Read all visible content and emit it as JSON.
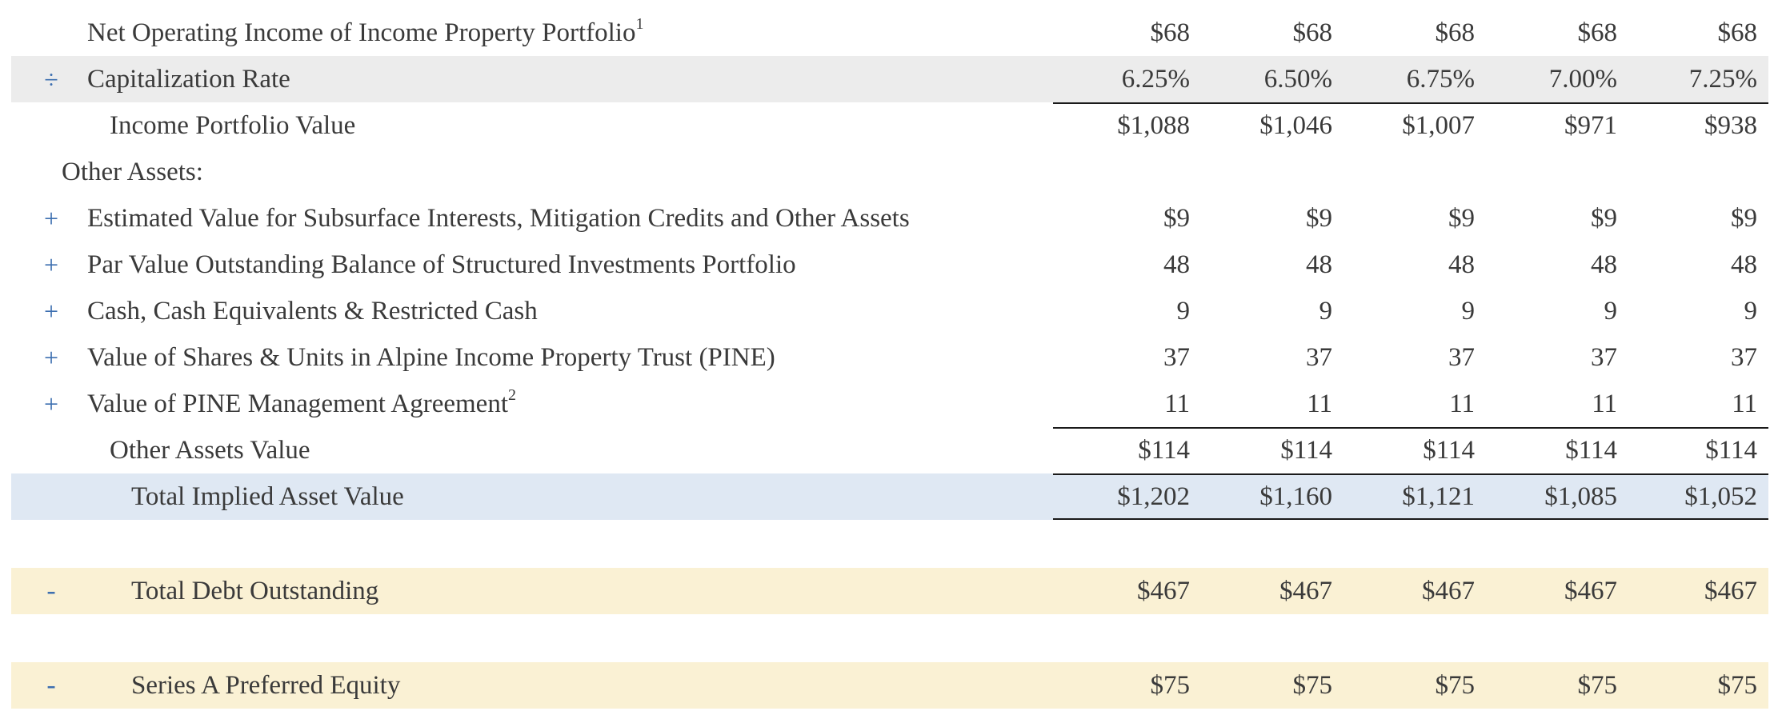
{
  "rows": [
    {
      "op": "",
      "label": "Net Operating Income of Income Property Portfolio",
      "sup": "1",
      "values": [
        "$68",
        "$68",
        "$68",
        "$68",
        "$68"
      ]
    },
    {
      "op": "÷",
      "label": "Capitalization Rate",
      "sup": "",
      "values": [
        "6.25%",
        "6.50%",
        "6.75%",
        "7.00%",
        "7.25%"
      ]
    },
    {
      "op": "",
      "label": "Income Portfolio Value",
      "sup": "",
      "values": [
        "$1,088",
        "$1,046",
        "$1,007",
        "$971",
        "$938"
      ]
    },
    {
      "op": "",
      "label": "Other Assets:",
      "sup": "",
      "values": [
        "",
        "",
        "",
        "",
        ""
      ]
    },
    {
      "op": "+",
      "label": "Estimated Value for Subsurface Interests, Mitigation Credits and Other Assets",
      "sup": "",
      "values": [
        "$9",
        "$9",
        "$9",
        "$9",
        "$9"
      ]
    },
    {
      "op": "+",
      "label": "Par Value Outstanding Balance of Structured Investments Portfolio",
      "sup": "",
      "values": [
        "48",
        "48",
        "48",
        "48",
        "48"
      ]
    },
    {
      "op": "+",
      "label": "Cash, Cash Equivalents & Restricted Cash",
      "sup": "",
      "values": [
        "9",
        "9",
        "9",
        "9",
        "9"
      ]
    },
    {
      "op": "+",
      "label": "Value of Shares & Units in Alpine Income Property Trust (PINE)",
      "sup": "",
      "values": [
        "37",
        "37",
        "37",
        "37",
        "37"
      ]
    },
    {
      "op": "+",
      "label": "Value of PINE Management Agreement",
      "sup": "2",
      "values": [
        "11",
        "11",
        "11",
        "11",
        "11"
      ]
    },
    {
      "op": "",
      "label": "Other Assets Value",
      "sup": "",
      "values": [
        "$114",
        "$114",
        "$114",
        "$114",
        "$114"
      ]
    },
    {
      "op": "",
      "label": "Total Implied Asset Value",
      "sup": "",
      "values": [
        "$1,202",
        "$1,160",
        "$1,121",
        "$1,085",
        "$1,052"
      ]
    },
    {
      "op": "-",
      "label": "Total Debt Outstanding",
      "sup": "",
      "values": [
        "$467",
        "$467",
        "$467",
        "$467",
        "$467"
      ]
    },
    {
      "op": "-",
      "label": "Series A Preferred Equity",
      "sup": "",
      "values": [
        "$75",
        "$75",
        "$75",
        "$75",
        "$75"
      ]
    }
  ],
  "colors": {
    "operator": "#3d6fb0",
    "shade_gray": "#ececec",
    "shade_blue": "#dfe8f3",
    "shade_yellow": "#faf1d4",
    "text": "#3a3a3a",
    "rule": "#1a1a1a"
  }
}
